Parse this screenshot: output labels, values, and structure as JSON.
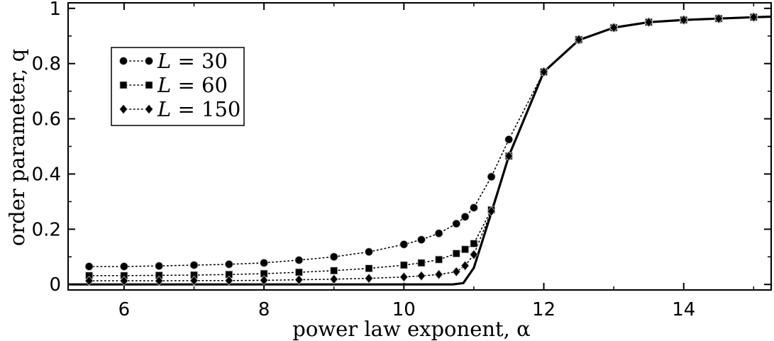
{
  "chart_data": {
    "type": "line",
    "xlabel": "power law exponent, α",
    "ylabel": "order parameter, q",
    "xlim": [
      5.2,
      15.25
    ],
    "ylim": [
      -0.02,
      1.02
    ],
    "xticks": [
      6,
      8,
      10,
      12,
      14
    ],
    "xtick_labels": [
      "6",
      "8",
      "10",
      "12",
      "14"
    ],
    "yticks": [
      0,
      0.2,
      0.4,
      0.6,
      0.8,
      1
    ],
    "ytick_labels": [
      "0",
      "0.2",
      "0.4",
      "0.6",
      "0.8",
      "1"
    ],
    "grid": false,
    "legend_position": "top-left",
    "series": [
      {
        "name": "L = 30",
        "label_prefix": "L",
        "label_value": "= 30",
        "marker": "circle",
        "line_style": "dotted",
        "x": [
          5.5,
          6,
          6.5,
          7,
          7.5,
          8,
          8.5,
          9,
          9.5,
          10,
          10.25,
          10.5,
          10.75,
          10.875,
          11,
          11.25,
          11.5,
          12,
          12.5,
          13,
          13.5,
          14,
          14.5,
          15
        ],
        "y": [
          0.065,
          0.065,
          0.067,
          0.07,
          0.073,
          0.078,
          0.088,
          0.1,
          0.118,
          0.145,
          0.162,
          0.185,
          0.22,
          0.245,
          0.278,
          0.39,
          0.525,
          0.77,
          0.885,
          0.93,
          0.95,
          0.958,
          0.963,
          0.968
        ]
      },
      {
        "name": "L = 60",
        "label_prefix": "L",
        "label_value": "= 60",
        "marker": "square",
        "line_style": "dotted",
        "x": [
          5.5,
          6,
          6.5,
          7,
          7.5,
          8,
          8.5,
          9,
          9.5,
          10,
          10.25,
          10.5,
          10.75,
          10.875,
          11,
          11.25,
          11.5,
          12,
          12.5,
          13,
          13.5,
          14,
          14.5,
          15
        ],
        "y": [
          0.032,
          0.032,
          0.033,
          0.034,
          0.036,
          0.039,
          0.044,
          0.05,
          0.058,
          0.07,
          0.078,
          0.09,
          0.112,
          0.127,
          0.148,
          0.27,
          0.465,
          0.77,
          0.887,
          0.93,
          0.95,
          0.958,
          0.963,
          0.968
        ]
      },
      {
        "name": "L = 150",
        "label_prefix": "L",
        "label_value": "= 150",
        "marker": "diamond",
        "line_style": "dotted",
        "x": [
          5.5,
          6,
          6.5,
          7,
          7.5,
          8,
          8.5,
          9,
          9.5,
          10,
          10.25,
          10.5,
          10.75,
          10.875,
          11,
          11.25,
          11.5,
          12,
          12.5,
          13,
          13.5,
          14,
          14.5,
          15
        ],
        "y": [
          0.013,
          0.013,
          0.013,
          0.014,
          0.014,
          0.015,
          0.017,
          0.019,
          0.022,
          0.027,
          0.031,
          0.036,
          0.046,
          0.068,
          0.108,
          0.265,
          0.465,
          0.77,
          0.887,
          0.93,
          0.95,
          0.958,
          0.963,
          0.968
        ]
      },
      {
        "name": "",
        "marker": "none",
        "line_style": "solid",
        "x": [
          5.2,
          10.7,
          10.85,
          11.0,
          11.25,
          11.5,
          12,
          12.5,
          13,
          13.5,
          14,
          14.5,
          15,
          15.25
        ],
        "y": [
          0.0,
          0.0,
          0.005,
          0.06,
          0.26,
          0.465,
          0.77,
          0.885,
          0.93,
          0.95,
          0.958,
          0.963,
          0.968,
          0.97
        ]
      }
    ]
  }
}
